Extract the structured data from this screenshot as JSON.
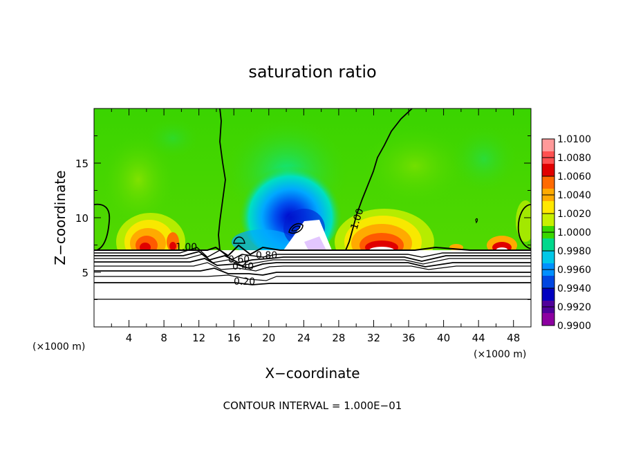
{
  "chart_data": {
    "type": "heatmap",
    "title": "saturation ratio",
    "xlabel": "X−coordinate",
    "ylabel": "Z−coordinate",
    "x_unit_left": "(×1000 m)",
    "x_unit_right": "(×1000 m)",
    "footer": "CONTOUR INTERVAL = 1.000E−01",
    "xlim": [
      0,
      50
    ],
    "ylim": [
      0,
      20
    ],
    "x_ticks": [
      "4",
      "8",
      "12",
      "16",
      "20",
      "24",
      "28",
      "32",
      "36",
      "40",
      "44",
      "48"
    ],
    "y_ticks": [
      "5",
      "10",
      "15"
    ],
    "colorbar": {
      "levels": [
        "1.0100",
        "1.0080",
        "1.0060",
        "1.0040",
        "1.0020",
        "1.0000",
        "0.9980",
        "0.9960",
        "0.9940",
        "0.9920",
        "0.9900"
      ],
      "colors": [
        "#ff9999",
        "#ff5050",
        "#e00000",
        "#ff6a00",
        "#ffaa00",
        "#ffe800",
        "#c8f000",
        "#38d800",
        "#00d88c",
        "#00c8e8",
        "#0090ff",
        "#0046e0",
        "#0000c0",
        "#50009a",
        "#8c00a0"
      ]
    },
    "contour_labels": [
      "1.00",
      "1.00",
      "0.80",
      "0.60",
      "0.40",
      "0.20"
    ],
    "contour_levels_below": [
      0.1,
      0.2,
      0.3,
      0.4,
      0.5,
      0.6,
      0.7,
      0.8,
      0.9,
      1.0
    ],
    "ground_level_z": 7
  }
}
